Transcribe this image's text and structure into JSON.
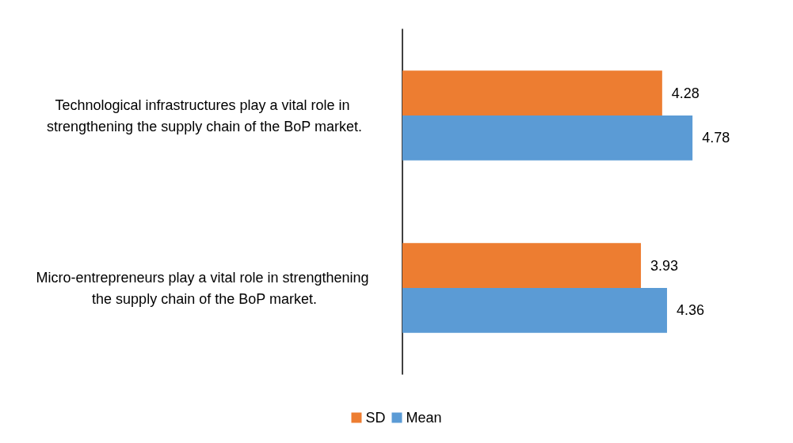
{
  "chart_data": {
    "type": "bar",
    "orientation": "horizontal",
    "categories": [
      "Technological infrastructures play a vital role in strengthening the supply chain of the BoP market.",
      "Micro-entrepreneurs play a vital role in strengthening the supply chain of the BoP market."
    ],
    "series": [
      {
        "name": "SD",
        "color": "#ed7d31",
        "values": [
          4.28,
          3.93
        ]
      },
      {
        "name": "Mean",
        "color": "#5b9bd5",
        "values": [
          4.78,
          4.36
        ]
      }
    ],
    "data_labels": true,
    "legend": "bottom",
    "grid": false
  }
}
